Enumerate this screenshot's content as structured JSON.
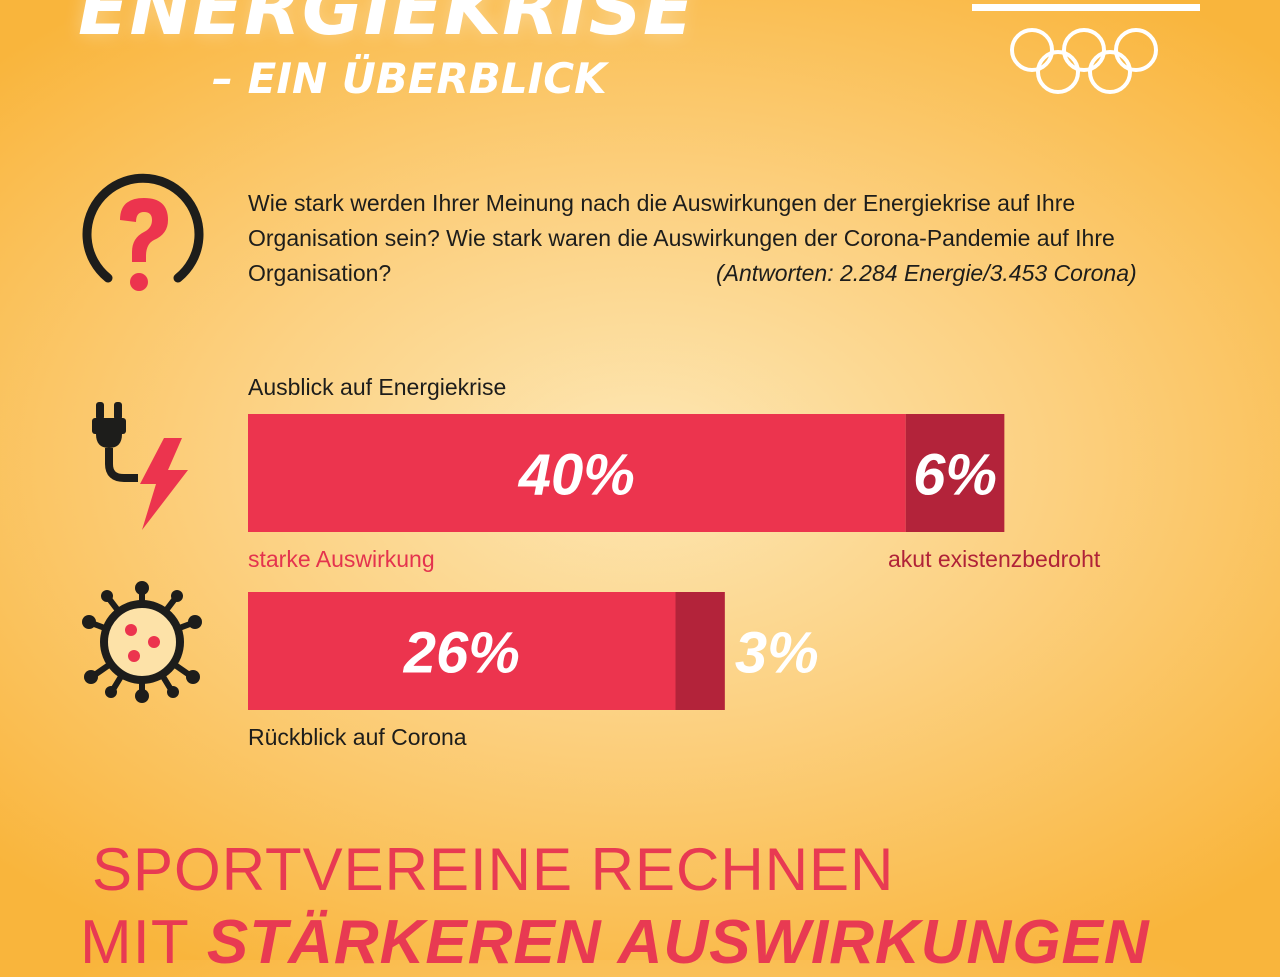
{
  "header": {
    "title_line1": "ENERGIEKRISE",
    "title_line2": "– EIN ÜBERBLICK"
  },
  "question": {
    "text": "Wie stark werden Ihrer Meinung nach die Auswirkungen der Energiekrise auf Ihre Organisation sein? Wie stark waren die Auswirkungen der Corona-Pandemie auf Ihre Organisation?",
    "note": "(Antworten: 2.284 Energie/3.453 Corona)"
  },
  "labels": {
    "energy_title": "Ausblick auf Energiekrise",
    "strong_impact": "starke Auswirkung",
    "existential": "akut existenzbedroht",
    "corona_title": "Rückblick auf Corona"
  },
  "footer": {
    "line1": "SPORTVEREINE RECHNEN",
    "line2_prefix": "MIT ",
    "line2_bold": "STÄRKEREN AUSWIRKUNGEN"
  },
  "colors": {
    "strong": "#ec344e",
    "existential": "#b3233a",
    "text_light": "#ffffff",
    "accent": "#e4334e"
  },
  "icons": [
    "question-icon",
    "plug-lightning-icon",
    "virus-icon",
    "olympic-rings-icon"
  ],
  "chart_data": {
    "type": "bar",
    "orientation": "horizontal",
    "stacked": true,
    "unit": "%",
    "categories": [
      "Ausblick auf Energiekrise",
      "Rückblick auf Corona"
    ],
    "series": [
      {
        "name": "starke Auswirkung",
        "values": [
          40,
          26
        ],
        "labels": [
          "40%",
          "26%"
        ]
      },
      {
        "name": "akut existenzbedroht",
        "values": [
          6,
          3
        ],
        "labels": [
          "6%",
          "3%"
        ]
      }
    ]
  }
}
